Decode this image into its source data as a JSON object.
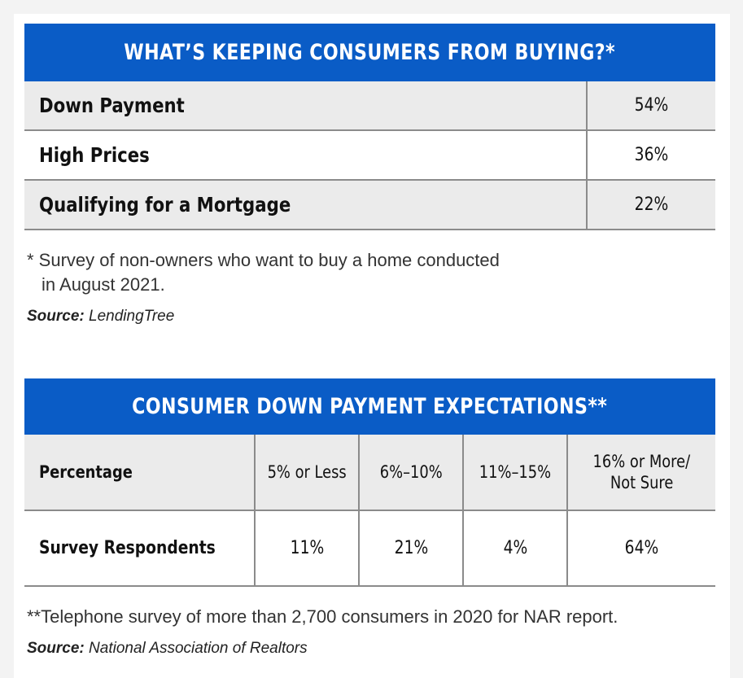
{
  "table1": {
    "title": "WHAT’S KEEPING CONSUMERS FROM BUYING?*",
    "rows": [
      {
        "label": "Down Payment",
        "value": "54%"
      },
      {
        "label": "High Prices",
        "value": "36%"
      },
      {
        "label": "Qualifying for a Mortgage",
        "value": "22%"
      }
    ],
    "footnote_line1": "* Survey of non-owners who want to buy a home conducted",
    "footnote_line2": "in August 2021.",
    "source_label": "Source:",
    "source_value": "LendingTree"
  },
  "table2": {
    "title": "CONSUMER DOWN PAYMENT EXPECTATIONS**",
    "header": {
      "label": "Percentage",
      "cols": [
        "5% or Less",
        "6%–10%",
        "11%–15%"
      ],
      "last_col_line1": "16% or More/",
      "last_col_line2": "Not Sure"
    },
    "row": {
      "label": "Survey Respondents",
      "values": [
        "11%",
        "21%",
        "4%",
        "64%"
      ]
    },
    "footnote": "**Telephone survey of more than 2,700 consumers in 2020 for NAR report.",
    "source_label": "Source:",
    "source_value": "National Association of Realtors"
  },
  "colors": {
    "banner": "#0a5cc6",
    "row_shade": "#ebebeb",
    "rule": "#8b8b8b"
  }
}
